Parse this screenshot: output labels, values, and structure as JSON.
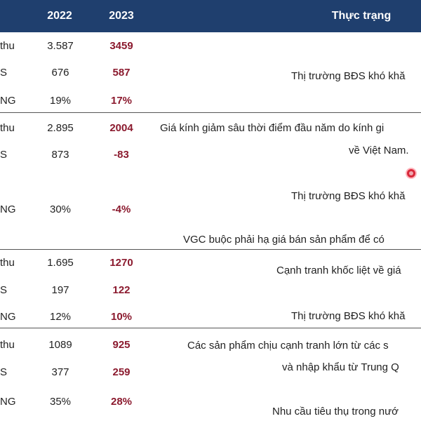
{
  "header": {
    "col_2022": "2022",
    "col_2023": "2023",
    "col_status": "Thực trạng"
  },
  "groups": [
    {
      "rows": [
        {
          "label": "thu",
          "v2022": "3.587",
          "v2023": "3459"
        },
        {
          "label": "S",
          "v2022": "676",
          "v2023": "587"
        },
        {
          "label": "NG",
          "v2022": "19%",
          "v2023": "17%"
        }
      ],
      "notes": [
        "Thị trường BĐS khó khă"
      ]
    },
    {
      "rows": [
        {
          "label": "thu",
          "v2022": "2.895",
          "v2023": "2004"
        },
        {
          "label": "S",
          "v2022": "873",
          "v2023": "-83"
        },
        {
          "label": "NG",
          "v2022": "30%",
          "v2023": "-4%"
        }
      ],
      "notes": [
        "Giá kính giảm sâu thời điểm đầu năm do kính gi",
        "về Việt Nam.",
        "Thị trường BĐS khó khă",
        "VGC buộc phải hạ giá bán sản phẩm để có"
      ]
    },
    {
      "rows": [
        {
          "label": "thu",
          "v2022": "1.695",
          "v2023": "1270"
        },
        {
          "label": "S",
          "v2022": "197",
          "v2023": "122"
        },
        {
          "label": "NG",
          "v2022": "12%",
          "v2023": "10%"
        }
      ],
      "notes": [
        "Cạnh tranh khốc liệt về giá",
        "Thị trường BĐS khó khă"
      ]
    },
    {
      "rows": [
        {
          "label": "thu",
          "v2022": "1089",
          "v2023": "925"
        },
        {
          "label": "S",
          "v2022": "377",
          "v2023": "259"
        },
        {
          "label": "NG",
          "v2022": "35%",
          "v2023": "28%"
        }
      ],
      "notes": [
        "Các sản phẩm chịu cạnh tranh lớn từ các s",
        "và nhập khẩu từ Trung Q",
        "Nhu cầu tiêu thụ trong nướ"
      ]
    }
  ],
  "colors": {
    "header_bg": "#1f3f6e",
    "accent_2023": "#8b1a2e",
    "pointer": "#d8283a"
  }
}
